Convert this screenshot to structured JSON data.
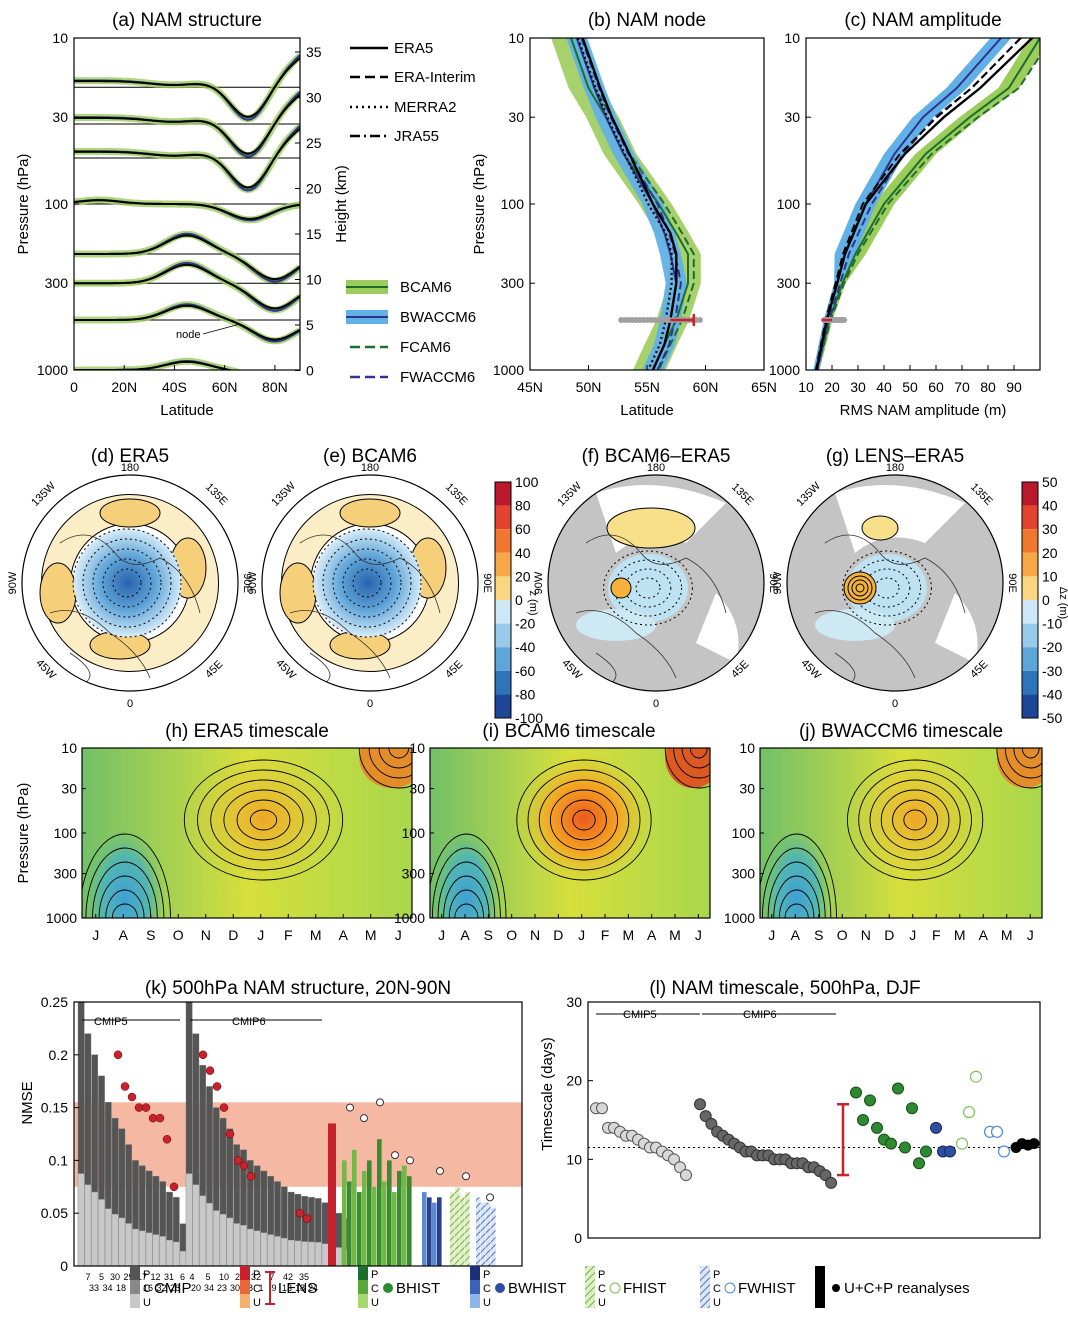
{
  "panels": {
    "a": {
      "title": "(a) NAM structure",
      "xlabel": "Latitude",
      "ylabel": "Pressure (hPa)",
      "y2label": "Height (km)",
      "xticks": [
        "0",
        "20N",
        "40S",
        "60N",
        "80N"
      ],
      "yticks": [
        "10",
        "30",
        "100",
        "300",
        "1000"
      ],
      "y2ticks": [
        "35",
        "30",
        "25",
        "20",
        "15",
        "10",
        "5",
        "0"
      ],
      "node_label": "node"
    },
    "b": {
      "title": "(b) NAM node",
      "xlabel": "Latitude",
      "ylabel": "Pressure (hPa)",
      "xticks": [
        "45N",
        "50N",
        "55N",
        "60N",
        "65N"
      ],
      "yticks": [
        "10",
        "30",
        "100",
        "300",
        "1000"
      ]
    },
    "c": {
      "title": "(c) NAM amplitude",
      "xlabel": "RMS NAM amplitude (m)",
      "ylabel": "Pressure (hPa)",
      "xticks": [
        "10",
        "20",
        "30",
        "40",
        "50",
        "60",
        "70",
        "80",
        "90"
      ],
      "yticks": [
        "10",
        "30",
        "100",
        "300",
        "1000"
      ]
    },
    "d": {
      "title": "(d) ERA5"
    },
    "e": {
      "title": "(e) BCAM6"
    },
    "f": {
      "title": "(f) BCAM6–ERA5"
    },
    "g": {
      "title": "(g) LENS–ERA5"
    },
    "polar_labels": {
      "top": "180",
      "left_top": "135W",
      "right_top": "135E",
      "left": "90W",
      "right": "90E",
      "left_bottom": "45W",
      "right_bottom": "45E",
      "bottom": "0"
    },
    "cbar1": {
      "label": "z (m)",
      "ticks": [
        "100",
        "80",
        "60",
        "40",
        "20",
        "0",
        "-20",
        "-40",
        "-60",
        "-80",
        "-100"
      ]
    },
    "cbar2": {
      "label": "Δz (m)",
      "ticks": [
        "50",
        "40",
        "30",
        "20",
        "10",
        "0",
        "-10",
        "-20",
        "-30",
        "-40",
        "-50"
      ]
    },
    "h": {
      "title": "(h) ERA5 timescale",
      "ylabel": "Pressure (hPa)"
    },
    "i": {
      "title": "(i) BCAM6 timescale"
    },
    "j": {
      "title": "(j) BWACCM6 timescale"
    },
    "months": [
      "J",
      "A",
      "S",
      "O",
      "N",
      "D",
      "J",
      "F",
      "M",
      "A",
      "M",
      "J"
    ],
    "k": {
      "title": "(k) 500hPa NAM structure, 20N-90N",
      "ylabel": "NMSE",
      "cmip5": "CMIP5",
      "cmip6": "CMIP6",
      "yticks": [
        "0",
        "0.05",
        "0.1",
        "0.15",
        "0.2",
        "0.25"
      ],
      "cmip5_top": [
        "7",
        "5",
        "30",
        "29",
        "17",
        "12",
        "31",
        "6"
      ],
      "cmip5_bot": [
        "33",
        "34",
        "18",
        "25",
        "16",
        "32",
        "28",
        ""
      ],
      "cmip6_top": [
        "4",
        "5",
        "10",
        "27",
        "32",
        "7",
        "42",
        "35"
      ],
      "cmip6_bot": [
        "20",
        "34",
        "23",
        "30",
        "38",
        "1",
        "9",
        "13",
        "18",
        "24"
      ]
    },
    "l": {
      "title": "(l) NAM timescale, 500hPa, DJF",
      "ylabel": "Timescale (days)",
      "cmip5": "CMIP5",
      "cmip6": "CMIP6",
      "yticks": [
        "0",
        "10",
        "20",
        "30"
      ]
    },
    "legend_a": [
      "ERA5",
      "ERA-Interim",
      "MERRA2",
      "JRA55"
    ],
    "legend_b": [
      "BCAM6",
      "BWACCM6",
      "FCAM6",
      "FWACCM6"
    ],
    "bottom_legend": [
      "CMIP",
      "LENS",
      "BHIST",
      "BWHIST",
      "FHIST",
      "FWHIST",
      "U+C+P reanalyses"
    ],
    "puc": [
      "P",
      "C",
      "U"
    ]
  },
  "colors": {
    "green_fill": "#9ccc5c",
    "green_line": "#1c6e2c",
    "blue_fill": "#62b1e6",
    "blue_line": "#2e3590",
    "red": "#c8222c",
    "pink": "#f5b8a2",
    "gray_dark": "#555555",
    "gray_light": "#c8c8c8"
  },
  "chart_data": [
    {
      "type": "line",
      "name": "a",
      "xlabel": "Latitude",
      "ylabel": "Pressure (hPa)",
      "ylim": [
        10,
        1000
      ],
      "yscale": "log",
      "levels_hPa": [
        15,
        25,
        40,
        100,
        200,
        300,
        500,
        1000
      ],
      "series": [
        {
          "name": "ERA5"
        },
        {
          "name": "ERA-Interim"
        },
        {
          "name": "MERRA2"
        },
        {
          "name": "JRA55"
        },
        {
          "name": "BCAM6"
        },
        {
          "name": "BWACCM6"
        },
        {
          "name": "FCAM6"
        },
        {
          "name": "FWACCM6"
        }
      ]
    },
    {
      "type": "line",
      "name": "b",
      "xlim": [
        45,
        65
      ],
      "ylim": [
        10,
        1000
      ],
      "yscale": "log",
      "pressure": [
        10,
        20,
        30,
        50,
        100,
        150,
        200,
        300,
        500,
        700,
        1000
      ],
      "series": [
        {
          "name": "ERA5",
          "values": [
            49.5,
            51,
            52,
            53.5,
            55.5,
            57,
            57.5,
            57.5,
            57,
            56.5,
            55.5
          ]
        },
        {
          "name": "BCAM6",
          "values": [
            48.5,
            50,
            51.5,
            53,
            56,
            57.5,
            58.5,
            58.5,
            57.5,
            56.5,
            55.5
          ]
        },
        {
          "name": "BWACCM6",
          "values": [
            49,
            50.5,
            51.5,
            53,
            55.5,
            56.5,
            57,
            57.5,
            57,
            56.5,
            55.5
          ]
        }
      ],
      "errorbar": {
        "p": 500,
        "x": [
          57,
          59
        ]
      }
    },
    {
      "type": "line",
      "name": "c",
      "xlim": [
        10,
        100
      ],
      "ylim": [
        10,
        1000
      ],
      "yscale": "log",
      "pressure": [
        10,
        20,
        30,
        50,
        100,
        200,
        300,
        500,
        1000
      ],
      "series": [
        {
          "name": "ERA5",
          "values": [
            97,
            77,
            63,
            48,
            33,
            25,
            22,
            18,
            14
          ]
        },
        {
          "name": "BCAM6",
          "values": [
            100,
            88,
            73,
            56,
            40,
            29,
            24,
            19,
            14
          ]
        },
        {
          "name": "BWACCM6",
          "values": [
            85,
            68,
            55,
            44,
            33,
            25,
            22,
            18,
            14
          ]
        }
      ]
    },
    {
      "type": "scatter",
      "name": "l",
      "ylabel": "Timescale (days)",
      "ylim": [
        0,
        30
      ],
      "reference": 11.5,
      "groups": [
        {
          "name": "CMIP5",
          "values": [
            16.5,
            16.5,
            14,
            14,
            13.5,
            13,
            13,
            12.5,
            12,
            11.5,
            11.5,
            11,
            10.5,
            10,
            9,
            8
          ]
        },
        {
          "name": "CMIP6",
          "values": [
            17,
            15.5,
            14.5,
            13.5,
            13,
            12.5,
            12,
            11.5,
            11,
            11,
            10.5,
            10.5,
            10.5,
            10,
            10,
            10,
            9.5,
            9.5,
            9.5,
            9,
            9,
            8.5,
            8,
            7
          ]
        },
        {
          "name": "BHIST",
          "values": [
            18.5,
            15,
            17.5,
            14,
            12.5,
            12,
            19,
            11.5,
            16.5,
            9.5,
            11
          ]
        },
        {
          "name": "BWHIST",
          "values": [
            14,
            11,
            11
          ]
        },
        {
          "name": "FHIST",
          "values": [
            12,
            16,
            20.5
          ]
        },
        {
          "name": "FWHIST",
          "values": [
            13.5,
            13.5,
            11
          ]
        },
        {
          "name": "reanalyses",
          "values": [
            11.5,
            12,
            11.8,
            12
          ]
        }
      ]
    }
  ]
}
